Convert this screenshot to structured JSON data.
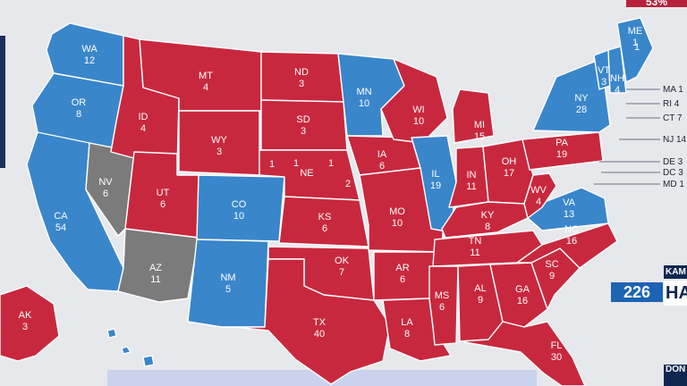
{
  "colors": {
    "dem": "#3a86cb",
    "rep": "#c8283e",
    "undecided": "#7b7b7b",
    "background": "#e7e8ec"
  },
  "states": [
    {
      "abbr": "WA",
      "ev": "12",
      "party": "dem"
    },
    {
      "abbr": "OR",
      "ev": "8",
      "party": "dem"
    },
    {
      "abbr": "CA",
      "ev": "54",
      "party": "dem"
    },
    {
      "abbr": "NV",
      "ev": "6",
      "party": "undecided"
    },
    {
      "abbr": "ID",
      "ev": "4",
      "party": "rep"
    },
    {
      "abbr": "MT",
      "ev": "4",
      "party": "rep"
    },
    {
      "abbr": "WY",
      "ev": "3",
      "party": "rep"
    },
    {
      "abbr": "UT",
      "ev": "6",
      "party": "rep"
    },
    {
      "abbr": "AZ",
      "ev": "11",
      "party": "undecided"
    },
    {
      "abbr": "CO",
      "ev": "10",
      "party": "dem"
    },
    {
      "abbr": "NM",
      "ev": "5",
      "party": "dem"
    },
    {
      "abbr": "ND",
      "ev": "3",
      "party": "rep"
    },
    {
      "abbr": "SD",
      "ev": "3",
      "party": "rep"
    },
    {
      "abbr": "NE",
      "ev": "",
      "party": "rep"
    },
    {
      "abbr": "KS",
      "ev": "6",
      "party": "rep"
    },
    {
      "abbr": "OK",
      "ev": "7",
      "party": "rep"
    },
    {
      "abbr": "TX",
      "ev": "40",
      "party": "rep"
    },
    {
      "abbr": "MN",
      "ev": "10",
      "party": "dem"
    },
    {
      "abbr": "IA",
      "ev": "6",
      "party": "rep"
    },
    {
      "abbr": "MO",
      "ev": "10",
      "party": "rep"
    },
    {
      "abbr": "AR",
      "ev": "6",
      "party": "rep"
    },
    {
      "abbr": "LA",
      "ev": "8",
      "party": "rep"
    },
    {
      "abbr": "WI",
      "ev": "10",
      "party": "rep"
    },
    {
      "abbr": "IL",
      "ev": "19",
      "party": "dem"
    },
    {
      "abbr": "MI",
      "ev": "15",
      "party": "rep"
    },
    {
      "abbr": "IN",
      "ev": "11",
      "party": "rep"
    },
    {
      "abbr": "OH",
      "ev": "17",
      "party": "rep"
    },
    {
      "abbr": "KY",
      "ev": "8",
      "party": "rep"
    },
    {
      "abbr": "TN",
      "ev": "11",
      "party": "rep"
    },
    {
      "abbr": "MS",
      "ev": "6",
      "party": "rep"
    },
    {
      "abbr": "AL",
      "ev": "9",
      "party": "rep"
    },
    {
      "abbr": "GA",
      "ev": "16",
      "party": "rep"
    },
    {
      "abbr": "FL",
      "ev": "30",
      "party": "rep"
    },
    {
      "abbr": "SC",
      "ev": "9",
      "party": "rep"
    },
    {
      "abbr": "NC",
      "ev": "16",
      "party": "rep"
    },
    {
      "abbr": "VA",
      "ev": "13",
      "party": "dem"
    },
    {
      "abbr": "WV",
      "ev": "4",
      "party": "rep"
    },
    {
      "abbr": "PA",
      "ev": "19",
      "party": "rep"
    },
    {
      "abbr": "NY",
      "ev": "28",
      "party": "dem"
    },
    {
      "abbr": "VT",
      "ev": "3",
      "party": "dem"
    },
    {
      "abbr": "NH",
      "ev": "4",
      "party": "dem"
    },
    {
      "abbr": "ME",
      "ev": "1",
      "party": "dem"
    },
    {
      "abbr": "AK",
      "ev": "3",
      "party": "rep"
    },
    {
      "abbr": "HI",
      "ev": "",
      "party": "dem"
    }
  ],
  "district_labels": {
    "ne_1": "1",
    "ne_2": "2",
    "ne_3": "1",
    "ne_dem": "1",
    "sd_1": "1",
    "me_2": "1"
  },
  "callouts": [
    {
      "text": "MA 1"
    },
    {
      "text": "RI 4"
    },
    {
      "text": "CT 7"
    },
    {
      "text": "NJ 14"
    },
    {
      "text": "DE 3"
    },
    {
      "text": "DC 3"
    },
    {
      "text": "MD 1"
    }
  ],
  "scoreboard": {
    "dem_total": "226",
    "dem_name": "HA",
    "dem_tag": "KAM",
    "rep_tag": "DON",
    "top_pct": "53%"
  }
}
